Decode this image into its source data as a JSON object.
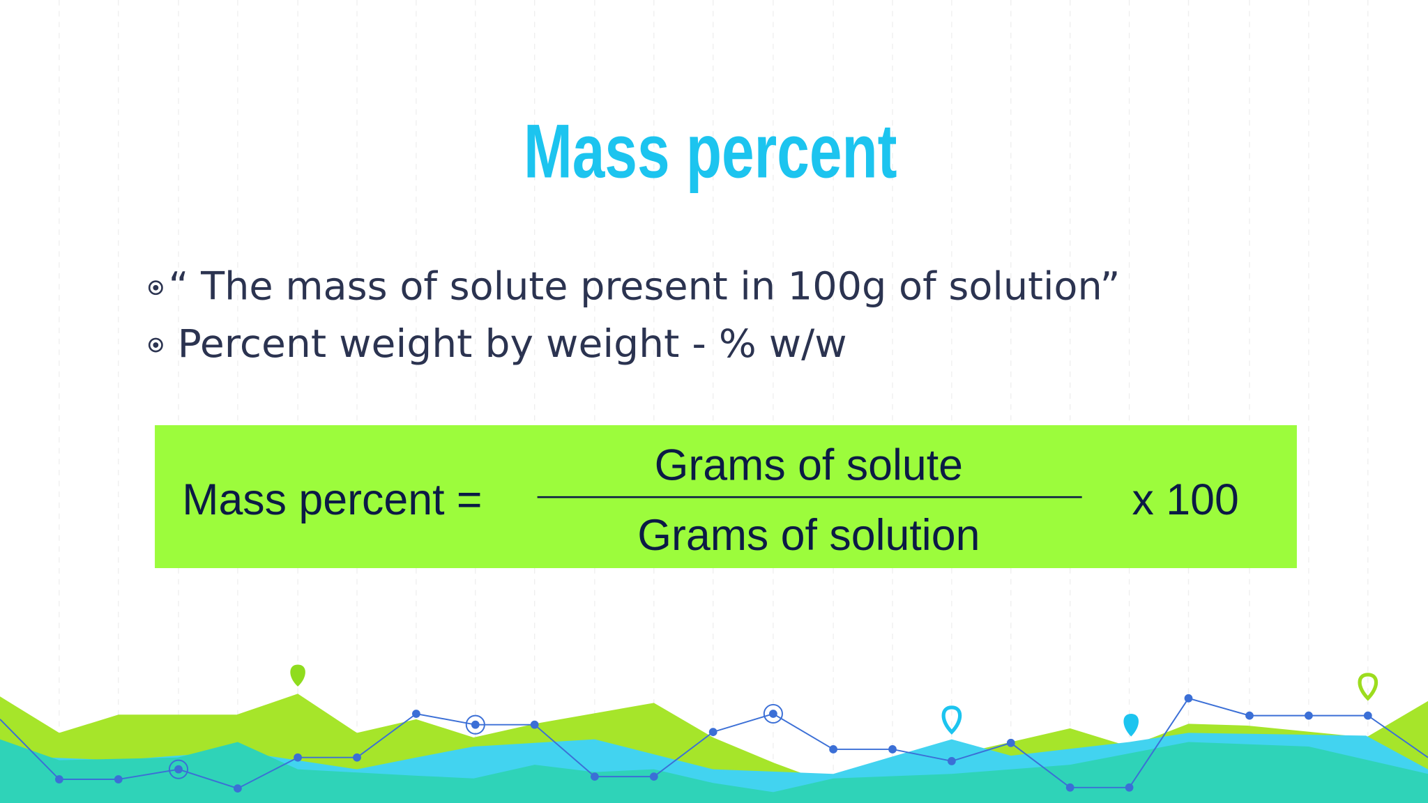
{
  "slide": {
    "title": "Mass percent",
    "bullets": [
      "“ The mass of solute present in 100g of solution”",
      "Percent weight by weight - % w/w"
    ],
    "formula": {
      "label": "Mass percent =",
      "numerator": "Grams of solute",
      "denominator": "Grams of solution",
      "multiplier": "x 100"
    }
  }
}
